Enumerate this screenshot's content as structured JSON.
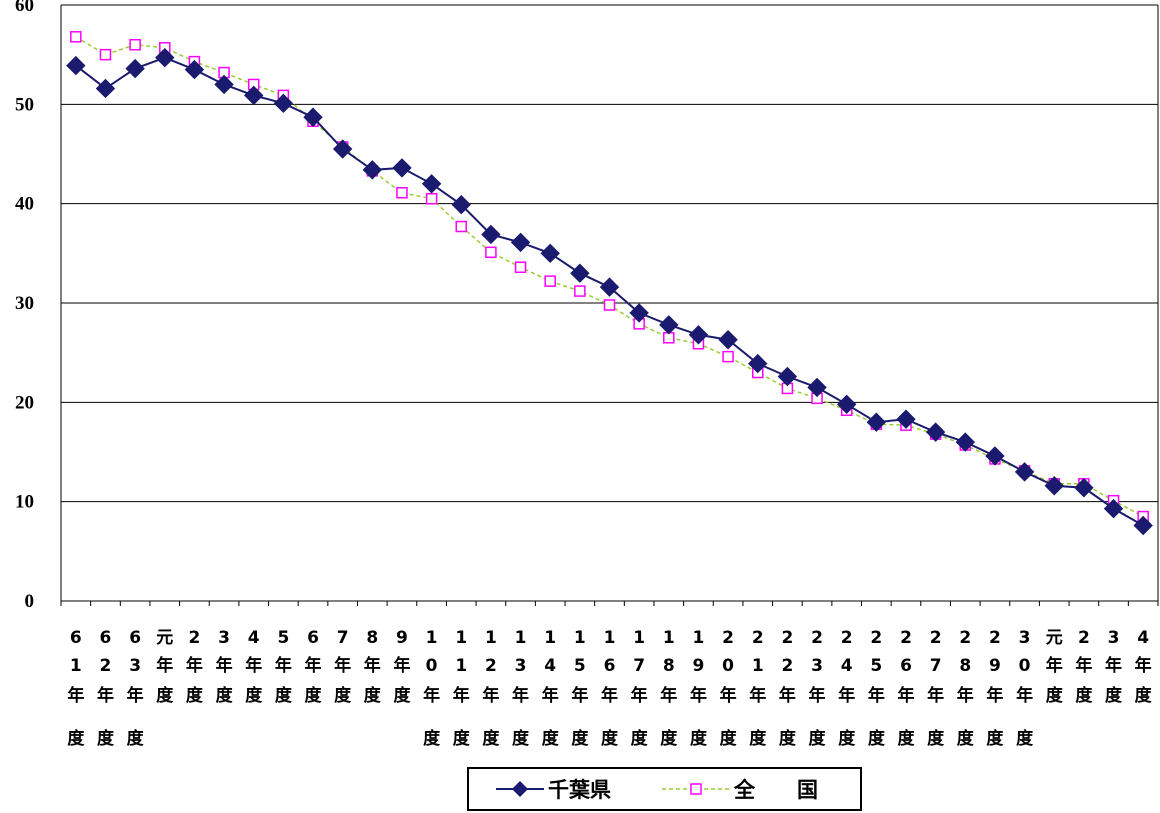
{
  "chart_data": {
    "type": "line",
    "title": "",
    "xlabel": "",
    "ylabel": "",
    "ylim": [
      0,
      60
    ],
    "yticks": [
      0,
      10,
      20,
      30,
      40,
      50,
      60
    ],
    "grid": "horizontal",
    "legend_position": "bottom",
    "categories": [
      [
        "6",
        "1",
        "年",
        "度"
      ],
      [
        "6",
        "2",
        "年",
        "度"
      ],
      [
        "6",
        "3",
        "年",
        "度"
      ],
      [
        "元",
        "年",
        "度"
      ],
      [
        "2",
        "年",
        "度"
      ],
      [
        "3",
        "年",
        "度"
      ],
      [
        "4",
        "年",
        "度"
      ],
      [
        "5",
        "年",
        "度"
      ],
      [
        "6",
        "年",
        "度"
      ],
      [
        "7",
        "年",
        "度"
      ],
      [
        "8",
        "年",
        "度"
      ],
      [
        "9",
        "年",
        "度"
      ],
      [
        "1",
        "0",
        "年",
        "度"
      ],
      [
        "1",
        "1",
        "年",
        "度"
      ],
      [
        "1",
        "2",
        "年",
        "度"
      ],
      [
        "1",
        "3",
        "年",
        "度"
      ],
      [
        "1",
        "4",
        "年",
        "度"
      ],
      [
        "1",
        "5",
        "年",
        "度"
      ],
      [
        "1",
        "6",
        "年",
        "度"
      ],
      [
        "1",
        "7",
        "年",
        "度"
      ],
      [
        "1",
        "8",
        "年",
        "度"
      ],
      [
        "1",
        "9",
        "年",
        "度"
      ],
      [
        "2",
        "0",
        "年",
        "度"
      ],
      [
        "2",
        "1",
        "年",
        "度"
      ],
      [
        "2",
        "2",
        "年",
        "度"
      ],
      [
        "2",
        "3",
        "年",
        "度"
      ],
      [
        "2",
        "4",
        "年",
        "度"
      ],
      [
        "2",
        "5",
        "年",
        "度"
      ],
      [
        "2",
        "6",
        "年",
        "度"
      ],
      [
        "2",
        "7",
        "年",
        "度"
      ],
      [
        "2",
        "8",
        "年",
        "度"
      ],
      [
        "2",
        "9",
        "年",
        "度"
      ],
      [
        "3",
        "0",
        "年",
        "度"
      ],
      [
        "元",
        "年",
        "度"
      ],
      [
        "2",
        "年",
        "度"
      ],
      [
        "3",
        "年",
        "度"
      ],
      [
        "4",
        "年",
        "度"
      ]
    ],
    "series": [
      {
        "name": "千葉県",
        "color": "#1a1a6e",
        "style": "solid",
        "marker": "filled-diamond",
        "values": [
          53.9,
          51.6,
          53.6,
          54.7,
          53.5,
          52.0,
          50.9,
          50.1,
          48.7,
          45.5,
          43.4,
          43.6,
          42.0,
          39.9,
          36.9,
          36.1,
          35.0,
          33.0,
          31.6,
          29.0,
          27.8,
          26.8,
          26.3,
          23.9,
          22.6,
          21.5,
          19.8,
          18.0,
          18.3,
          17.0,
          16.0,
          14.6,
          13.0,
          11.6,
          11.4,
          9.3,
          7.6
        ]
      },
      {
        "name": "全　　国",
        "color": "#99cc33",
        "marker_color": "#ff00ff",
        "style": "dashed",
        "marker": "hollow-square",
        "values": [
          56.8,
          55.0,
          56.0,
          55.7,
          54.3,
          53.2,
          52.0,
          50.9,
          48.3,
          45.7,
          43.3,
          41.1,
          40.5,
          37.7,
          35.1,
          33.6,
          32.2,
          31.2,
          29.8,
          27.9,
          26.5,
          25.9,
          24.6,
          23.0,
          21.4,
          20.4,
          19.2,
          17.8,
          17.7,
          16.8,
          15.7,
          14.3,
          13.1,
          11.8,
          11.8,
          10.1,
          8.5
        ]
      }
    ]
  }
}
